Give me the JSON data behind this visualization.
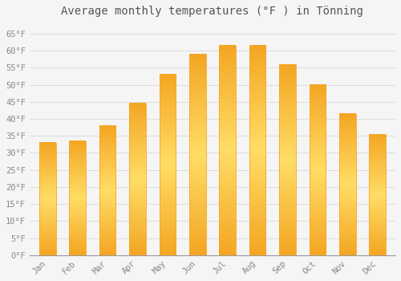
{
  "title": "Average monthly temperatures (°F ) in Tönning",
  "months": [
    "Jan",
    "Feb",
    "Mar",
    "Apr",
    "May",
    "Jun",
    "Jul",
    "Aug",
    "Sep",
    "Oct",
    "Nov",
    "Dec"
  ],
  "values": [
    33,
    33.5,
    38,
    44.5,
    53,
    59,
    61.5,
    61.5,
    56,
    50,
    41.5,
    35.5
  ],
  "bar_color_center": "#FFD966",
  "bar_color_edge": "#F5A623",
  "background_color": "#F5F5F5",
  "plot_bg_color": "#F5F5F5",
  "grid_color": "#DDDDDD",
  "tick_label_color": "#888888",
  "title_color": "#555555",
  "ylim": [
    0,
    68
  ],
  "yticks": [
    0,
    5,
    10,
    15,
    20,
    25,
    30,
    35,
    40,
    45,
    50,
    55,
    60,
    65
  ],
  "ytick_labels": [
    "0°F",
    "5°F",
    "10°F",
    "15°F",
    "20°F",
    "25°F",
    "30°F",
    "35°F",
    "40°F",
    "45°F",
    "50°F",
    "55°F",
    "60°F",
    "65°F"
  ],
  "title_fontsize": 10,
  "tick_fontsize": 7.5,
  "bar_width": 0.55
}
